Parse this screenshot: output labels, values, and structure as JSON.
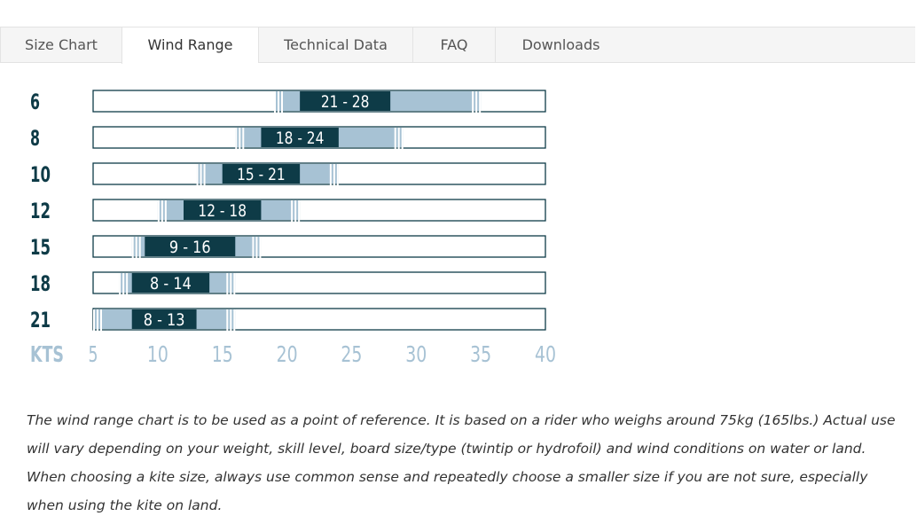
{
  "tabs": [
    {
      "label": "Size Chart",
      "active": false
    },
    {
      "label": "Wind Range",
      "active": true
    },
    {
      "label": "Technical Data",
      "active": false
    },
    {
      "label": "FAQ",
      "active": false
    },
    {
      "label": "Downloads",
      "active": false
    }
  ],
  "chart_data": {
    "type": "bar",
    "orientation": "horizontal",
    "x_unit_label": "KTS",
    "x_ticks": [
      5,
      10,
      15,
      20,
      25,
      30,
      35,
      40
    ],
    "xlim": [
      5,
      40
    ],
    "colors": {
      "optimal": "#0e3b47",
      "extended": "#a7c2d4",
      "outline": "#0e3b47",
      "axis_text": "#a7c2d4",
      "size_label": "#0e3b47",
      "range_text": "#ffffff"
    },
    "rows": [
      {
        "size": "6",
        "range_label": "21 - 28",
        "optimal": [
          21,
          28
        ],
        "extended": [
          19,
          35
        ]
      },
      {
        "size": "8",
        "range_label": "18 - 24",
        "optimal": [
          18,
          24
        ],
        "extended": [
          16,
          29
        ]
      },
      {
        "size": "10",
        "range_label": "15 - 21",
        "optimal": [
          15,
          21
        ],
        "extended": [
          13,
          24
        ]
      },
      {
        "size": "12",
        "range_label": "12 - 18",
        "optimal": [
          12,
          18
        ],
        "extended": [
          10,
          21
        ]
      },
      {
        "size": "15",
        "range_label": "9 - 16",
        "optimal": [
          9,
          16
        ],
        "extended": [
          8,
          18
        ]
      },
      {
        "size": "18",
        "range_label": "8 - 14",
        "optimal": [
          8,
          14
        ],
        "extended": [
          7,
          16
        ]
      },
      {
        "size": "21",
        "range_label": "8 - 13",
        "optimal": [
          8,
          13
        ],
        "extended": [
          5,
          16
        ]
      }
    ]
  },
  "note": "The wind range chart is to be used as a point of reference. It is based on a rider who weighs around 75kg (165lbs.) Actual use will vary depending on your weight, skill level, board size/type (twintip or hydrofoil) and wind conditions on water or land. When choosing a kite size, always use common sense and repeatedly choose a smaller size if you are not sure, especially when using the kite on land."
}
